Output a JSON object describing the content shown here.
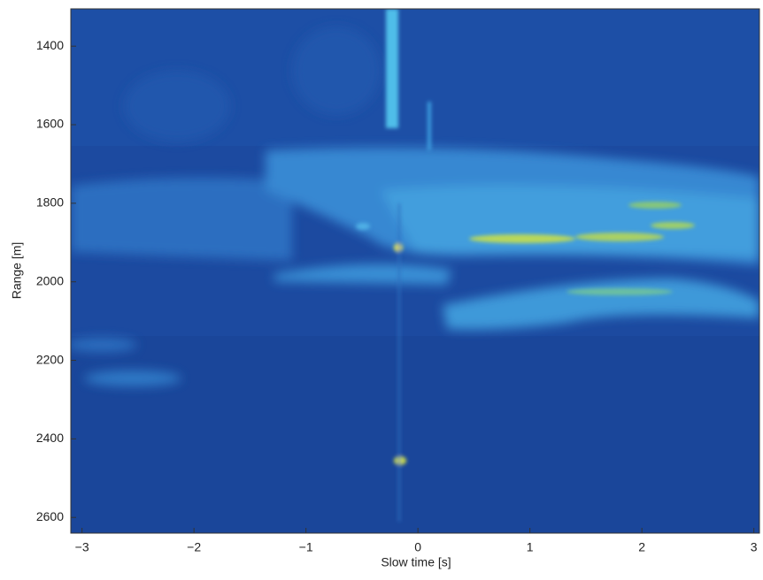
{
  "chart_data": {
    "type": "image",
    "x_label": "Slow time [s]",
    "y_label": "Range [m]",
    "xlim": [
      -3.1,
      3.05
    ],
    "ylim": [
      1305,
      2640
    ],
    "y_inverted": true,
    "xticks": [
      {
        "value": -3,
        "label": "−3"
      },
      {
        "value": -2,
        "label": "−2"
      },
      {
        "value": -1,
        "label": "−1"
      },
      0,
      1,
      2,
      3
    ],
    "yticks": [
      1400,
      1600,
      1800,
      2000,
      2200,
      2400,
      2600
    ]
  }
}
